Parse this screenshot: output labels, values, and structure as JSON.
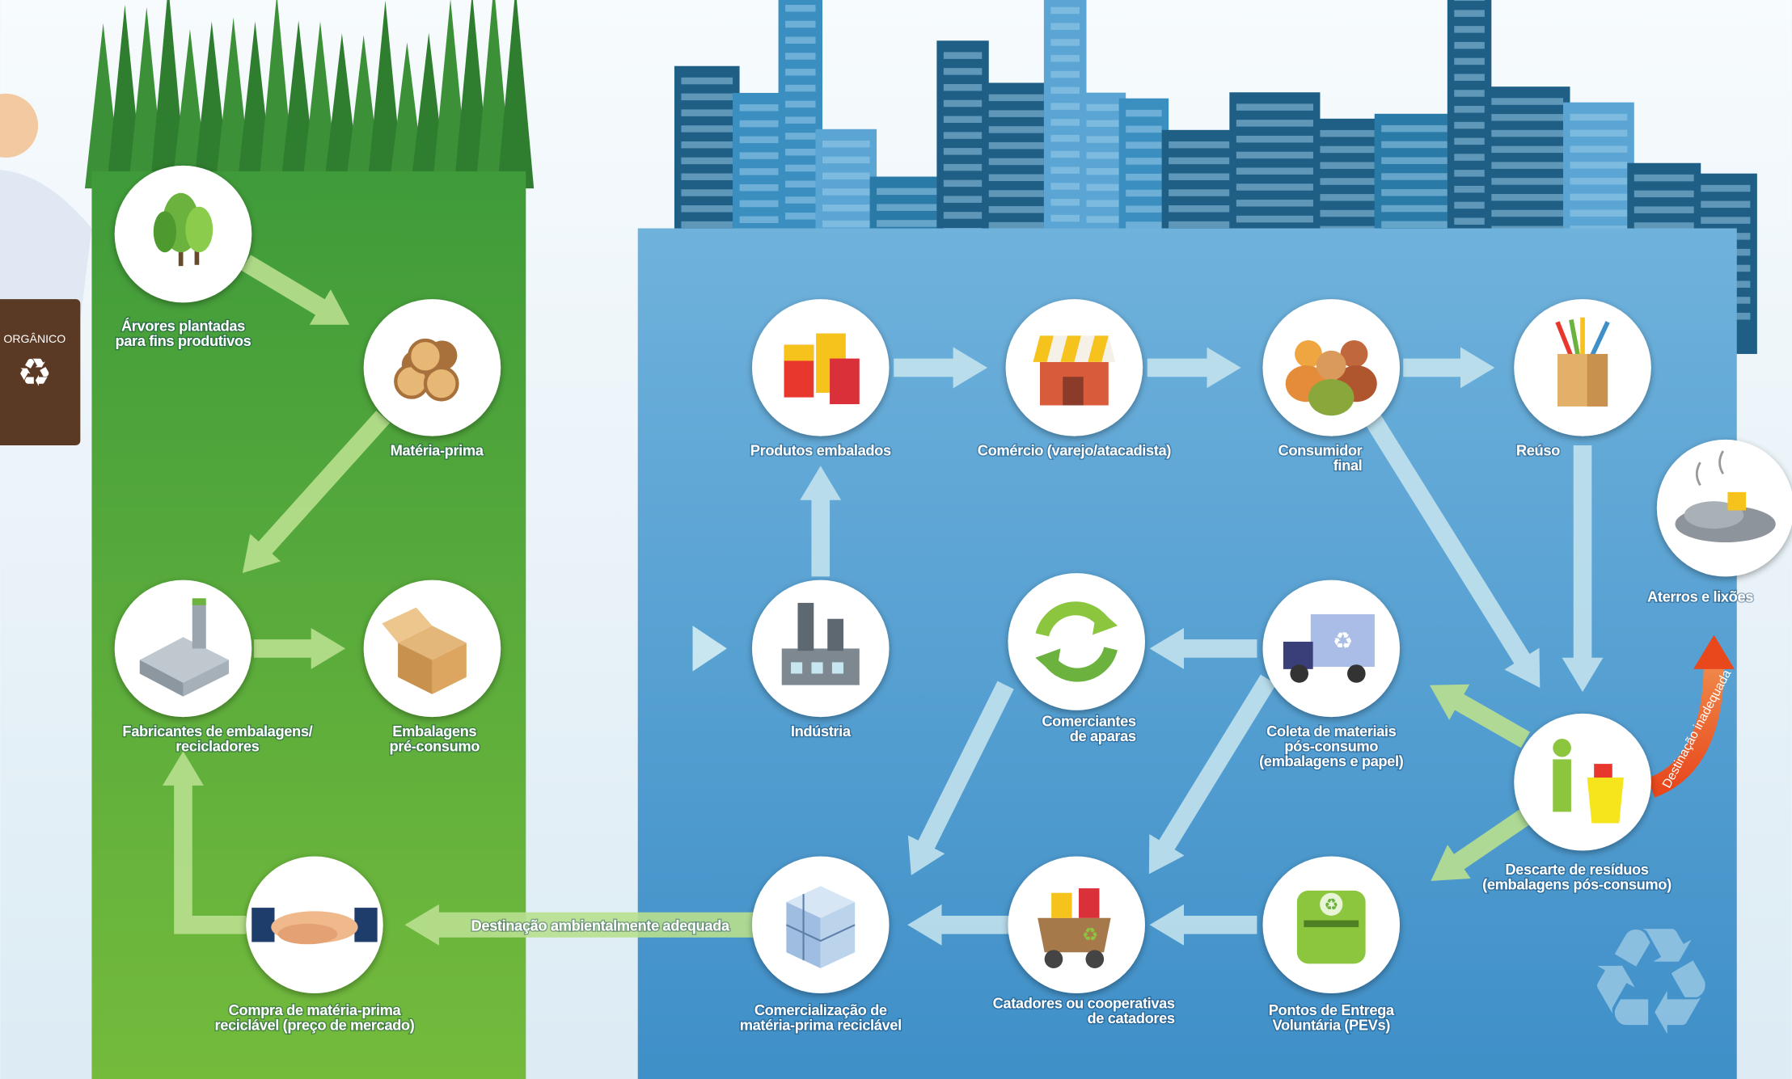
{
  "bin_label": "ORGÂNICO",
  "nodes": [
    {
      "label": [
        "Árvores plantadas",
        "para fins produtivos"
      ]
    },
    {
      "label": [
        "Matéria-prima"
      ]
    },
    {
      "label": [
        "Fabricantes de embalagens/",
        "recicladores"
      ]
    },
    {
      "label": [
        "Embalagens",
        "pré-consumo"
      ]
    },
    {
      "label": [
        "Compra de matéria-prima",
        "reciclável (preço de mercado)"
      ]
    },
    {
      "label": [
        "Produtos embalados"
      ]
    },
    {
      "label": [
        "Comércio (varejo/atacadista)"
      ]
    },
    {
      "label": [
        "Consumidor",
        "final"
      ]
    },
    {
      "label": [
        "Reúso"
      ]
    },
    {
      "label": [
        "Aterros e lixões"
      ]
    },
    {
      "label": [
        "Indústria"
      ]
    },
    {
      "label": [
        "Comerciantes",
        "de aparas"
      ]
    },
    {
      "label": [
        "Coleta de materiais",
        "pós-consumo",
        "(embalagens e papel)"
      ]
    },
    {
      "label": [
        "Descarte de resíduos",
        "(embalagens pós-consumo)"
      ]
    },
    {
      "label": [
        "Comercialização de",
        "matéria-prima reciclável"
      ]
    },
    {
      "label": [
        "Catadores ou cooperativas",
        "de catadores"
      ]
    },
    {
      "label": [
        "Pontos de Entrega",
        "Voluntária (PEVs)"
      ]
    }
  ],
  "arrow_labels": {
    "adequate": "Destinação ambientalmente adequada",
    "inadequate": "Destinação inadequada"
  }
}
